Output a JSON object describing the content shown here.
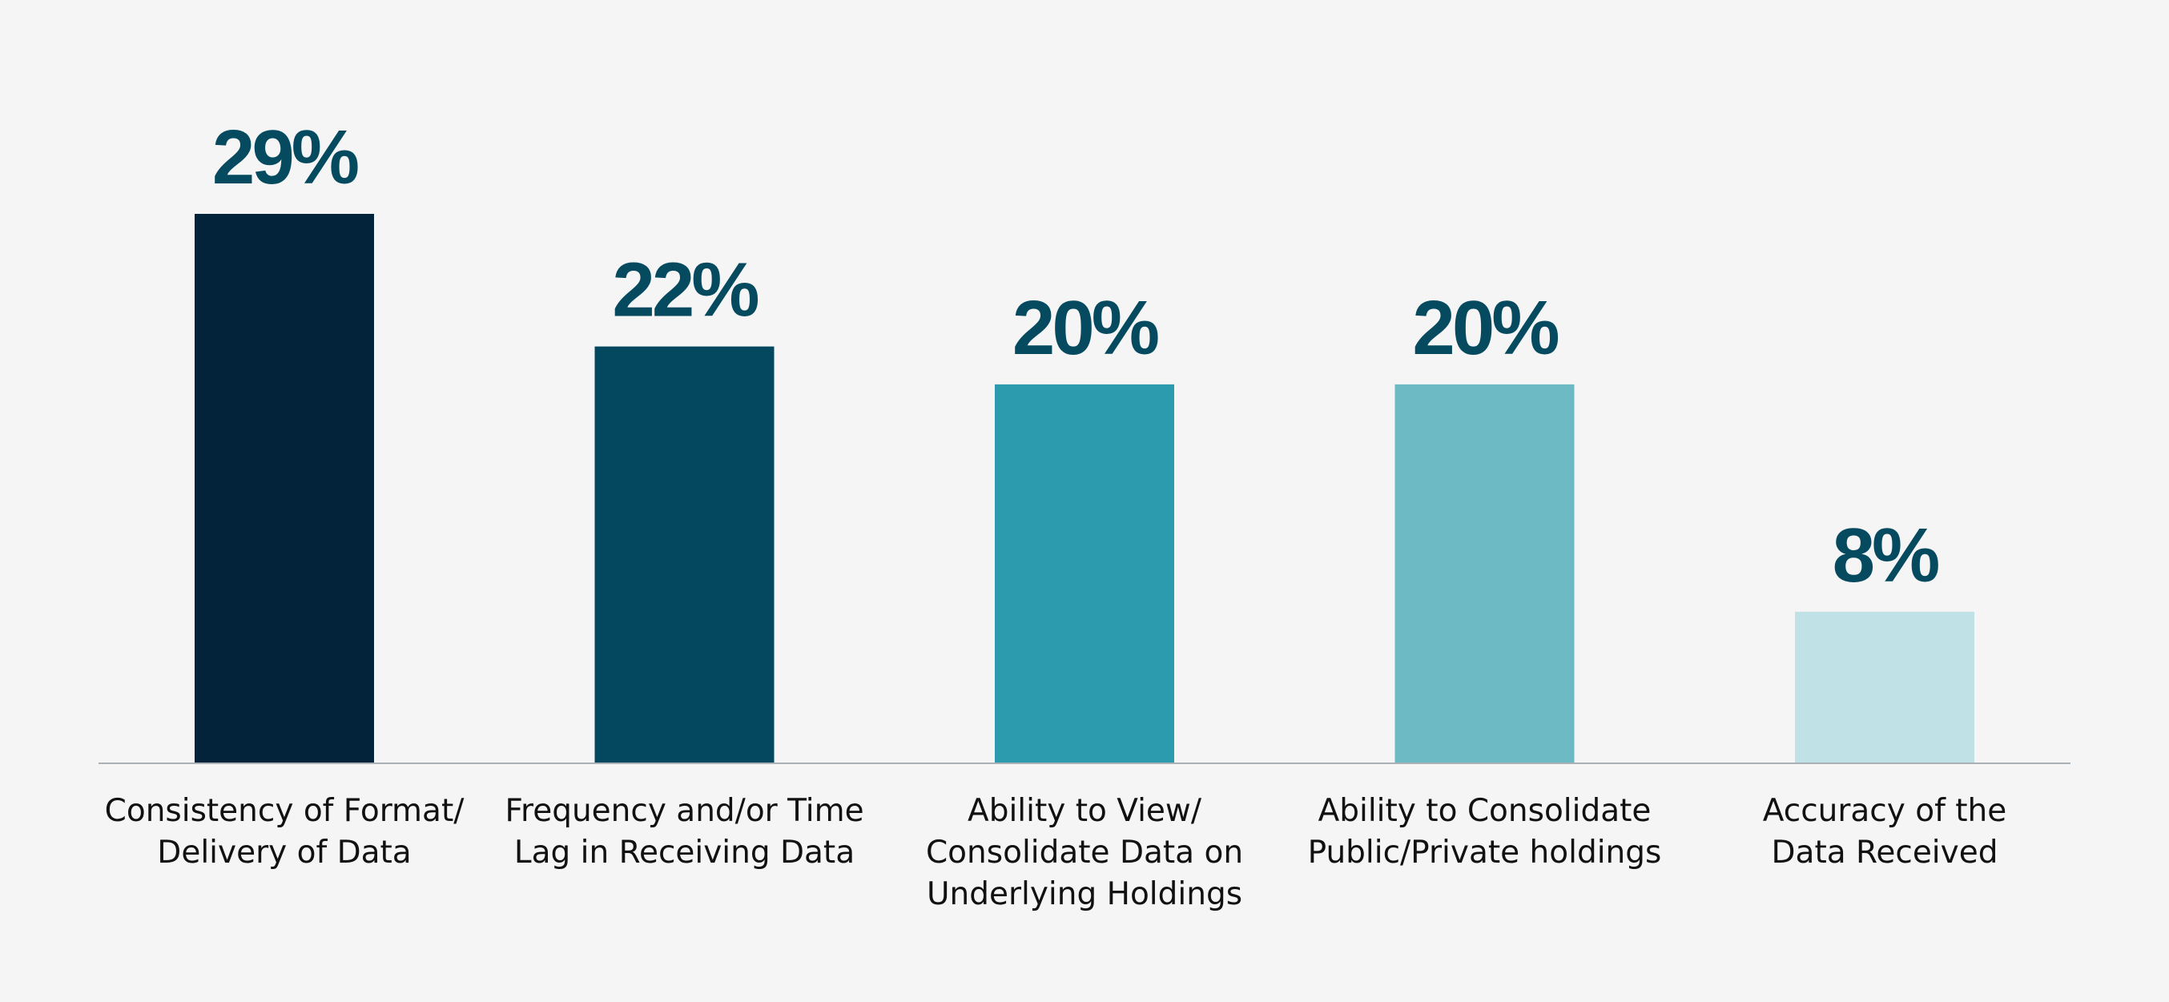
{
  "chart_data": {
    "type": "bar",
    "categories": [
      [
        "Consistency of Format/",
        "Delivery of Data"
      ],
      [
        "Frequency and/or Time",
        "Lag in Receiving Data"
      ],
      [
        "Ability to View/",
        "Consolidate Data on",
        "Underlying Holdings"
      ],
      [
        "Ability to Consolidate",
        "Public/Private holdings"
      ],
      [
        "Accuracy of the",
        "Data Received"
      ]
    ],
    "values": [
      29,
      22,
      20,
      20,
      8
    ],
    "value_labels": [
      "29%",
      "22%",
      "20%",
      "20%",
      "8%"
    ],
    "colors": [
      "#02233a",
      "#03485f",
      "#2b9bad",
      "#6dbac4",
      "#c0e2e6"
    ],
    "title": "",
    "xlabel": "",
    "ylabel": "",
    "ylim": [
      0,
      29
    ],
    "grid": false,
    "legend": "none"
  }
}
